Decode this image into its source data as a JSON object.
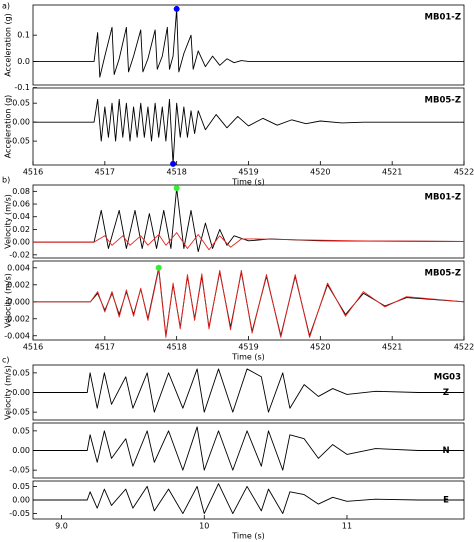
{
  "chart_data": [
    {
      "type": "line",
      "panel_label": "a)",
      "label": "MB01-Z",
      "ylabel": "Acceleration (g)",
      "xlim": [
        4516,
        4522
      ],
      "ylim": [
        -0.09,
        0.215
      ],
      "yticks": [
        0.1,
        {
          "value": 0,
          "label": "0.0"
        },
        -0.1
      ],
      "series": [
        {
          "color": "#000000",
          "x": [
            4516,
            4516.85,
            4516.9,
            4516.93,
            4517.0,
            4517.1,
            4517.13,
            4517.2,
            4517.3,
            4517.33,
            4517.4,
            4517.5,
            4517.53,
            4517.6,
            4517.7,
            4517.73,
            4517.8,
            4517.87,
            4517.9,
            4517.95,
            4518.0,
            4518.03,
            4518.1,
            4518.2,
            4518.23,
            4518.3,
            4518.4,
            4518.5,
            4518.6,
            4518.7,
            4518.8,
            4518.9,
            4519.0,
            4522
          ],
          "values": [
            0,
            0,
            0.11,
            -0.06,
            0.02,
            0.13,
            -0.05,
            0.01,
            0.13,
            -0.04,
            0.02,
            0.12,
            -0.04,
            0.01,
            0.12,
            -0.03,
            0.02,
            0.13,
            -0.03,
            0.02,
            0.2,
            -0.04,
            0.03,
            0.1,
            -0.03,
            0.04,
            -0.02,
            0.02,
            -0.015,
            0.01,
            -0.005,
            0.003,
            0,
            0
          ]
        }
      ],
      "points": [
        {
          "x": 4518.0,
          "y": 0.2,
          "color": "#0000ff"
        }
      ]
    },
    {
      "type": "line",
      "label": "MB05-Z",
      "ylabel": "Acceleration (g)",
      "xlabel": "Time (s)",
      "xlim": [
        4516,
        4522
      ],
      "xticks": [
        4516,
        4517,
        4518,
        4519,
        4520,
        4521,
        4522
      ],
      "ylim": [
        -0.113,
        0.09
      ],
      "yticks": [
        0.05,
        {
          "value": 0,
          "label": "0.00"
        },
        -0.05
      ],
      "series": [
        {
          "color": "#000000",
          "x": [
            4516,
            4516.85,
            4516.9,
            4516.95,
            4517.0,
            4517.05,
            4517.1,
            4517.15,
            4517.2,
            4517.25,
            4517.3,
            4517.35,
            4517.4,
            4517.45,
            4517.5,
            4517.55,
            4517.6,
            4517.65,
            4517.7,
            4517.75,
            4517.8,
            4517.85,
            4517.9,
            4517.95,
            4518.0,
            4518.05,
            4518.1,
            4518.15,
            4518.2,
            4518.25,
            4518.3,
            4518.4,
            4518.55,
            4518.7,
            4518.85,
            4519.0,
            4519.2,
            4519.4,
            4519.6,
            4519.8,
            4520.0,
            4520.3,
            4520.6,
            4522
          ],
          "values": [
            0,
            0,
            0.06,
            -0.05,
            0.04,
            -0.04,
            0.05,
            -0.05,
            0.06,
            -0.04,
            0.05,
            -0.05,
            0.04,
            -0.04,
            0.05,
            -0.04,
            0.04,
            -0.05,
            0.05,
            -0.04,
            0.04,
            -0.05,
            0.06,
            -0.11,
            0.05,
            -0.04,
            0.04,
            -0.04,
            0.03,
            -0.03,
            0.03,
            -0.02,
            0.02,
            -0.015,
            0.015,
            -0.01,
            0.01,
            -0.008,
            0.006,
            -0.004,
            0.003,
            -0.002,
            0,
            0
          ]
        }
      ],
      "points": [
        {
          "x": 4517.95,
          "y": -0.11,
          "color": "#0000ff"
        }
      ]
    },
    {
      "type": "line",
      "panel_label": "b)",
      "label": "MB01-Z",
      "ylabel": "Velocity (m/s)",
      "xlim": [
        4516,
        4522
      ],
      "ylim": [
        -0.025,
        0.09
      ],
      "yticks": [
        0.08,
        0.06,
        0.04,
        0.02,
        {
          "value": 0,
          "label": "0.00"
        },
        -0.02
      ],
      "series": [
        {
          "color": "#000000",
          "x": [
            4516,
            4516.85,
            4516.95,
            4517.05,
            4517.2,
            4517.3,
            4517.42,
            4517.52,
            4517.62,
            4517.72,
            4517.82,
            4517.92,
            4518.0,
            4518.1,
            4518.2,
            4518.3,
            4518.4,
            4518.5,
            4518.6,
            4518.7,
            4518.8,
            4519.0,
            4519.3,
            4520,
            4522
          ],
          "values": [
            0,
            0,
            0.05,
            -0.01,
            0.05,
            -0.01,
            0.05,
            -0.01,
            0.045,
            -0.01,
            0.05,
            -0.01,
            0.085,
            -0.01,
            0.05,
            -0.015,
            0.03,
            -0.01,
            0.02,
            -0.005,
            0.01,
            0.002,
            0.005,
            0.002,
            0.001
          ]
        },
        {
          "color": "#e8231e",
          "x": [
            4516,
            4516.85,
            4517.0,
            4517.1,
            4517.25,
            4517.35,
            4517.5,
            4517.6,
            4517.75,
            4517.85,
            4518.0,
            4518.15,
            4518.3,
            4518.45,
            4518.6,
            4518.75,
            4518.9,
            4519.1,
            4519.5,
            4520.5,
            4522
          ],
          "values": [
            0,
            0,
            0.01,
            -0.005,
            0.01,
            -0.005,
            0.01,
            -0.005,
            0.012,
            -0.005,
            0.015,
            -0.01,
            0.012,
            -0.012,
            0.01,
            -0.008,
            0.005,
            0.005,
            0.004,
            0.002,
            0.001
          ]
        }
      ],
      "points": [
        {
          "x": 4518.0,
          "y": 0.085,
          "color": "#33ee33"
        }
      ]
    },
    {
      "type": "line",
      "label": "MB05-Z",
      "ylabel": "Velocity (m/s)",
      "xlabel": "Time (s)",
      "xlim": [
        4516,
        4522
      ],
      "xticks": [
        4516,
        4517,
        4518,
        4519,
        4520,
        4521,
        4522
      ],
      "ylim": [
        -0.0045,
        0.0048
      ],
      "yticks": [
        0.004,
        0.002,
        {
          "value": 0,
          "label": "0.000"
        },
        -0.002,
        -0.004
      ],
      "series": [
        {
          "color": "#000000",
          "x": [
            4516,
            4516.8,
            4516.9,
            4517.0,
            4517.1,
            4517.2,
            4517.3,
            4517.4,
            4517.5,
            4517.6,
            4517.75,
            4517.85,
            4517.95,
            4518.05,
            4518.15,
            4518.25,
            4518.35,
            4518.45,
            4518.6,
            4518.75,
            4518.9,
            4519.05,
            4519.25,
            4519.45,
            4519.65,
            4519.85,
            4520.1,
            4520.35,
            4520.6,
            4520.9,
            4521.2,
            4522
          ],
          "values": [
            0,
            0,
            0.001,
            -0.001,
            0.001,
            -0.0015,
            0.0012,
            -0.0015,
            0.0015,
            -0.002,
            0.004,
            -0.004,
            0.002,
            -0.003,
            0.003,
            -0.002,
            0.003,
            -0.003,
            0.0035,
            -0.003,
            0.0035,
            -0.0035,
            0.003,
            -0.004,
            0.003,
            -0.004,
            0.002,
            -0.0015,
            0.001,
            -0.0005,
            0.0005,
            0
          ]
        },
        {
          "color": "#e8231e",
          "x": [
            4516,
            4516.8,
            4516.9,
            4517.0,
            4517.1,
            4517.2,
            4517.3,
            4517.4,
            4517.5,
            4517.6,
            4517.75,
            4517.85,
            4517.95,
            4518.05,
            4518.15,
            4518.25,
            4518.35,
            4518.45,
            4518.6,
            4518.75,
            4518.9,
            4519.05,
            4519.25,
            4519.45,
            4519.65,
            4519.85,
            4520.1,
            4520.35,
            4520.6,
            4520.9,
            4521.2,
            4522
          ],
          "values": [
            0,
            0,
            0.0012,
            -0.0012,
            0.0012,
            -0.0018,
            0.0014,
            -0.0017,
            0.0016,
            -0.0022,
            0.0038,
            -0.0042,
            0.0022,
            -0.0032,
            0.0032,
            -0.0022,
            0.0033,
            -0.0032,
            0.0037,
            -0.0033,
            0.0037,
            -0.0037,
            0.0032,
            -0.0042,
            0.0032,
            -0.0042,
            0.0022,
            -0.0017,
            0.0012,
            -0.0006,
            0.0006,
            0
          ]
        }
      ],
      "points": [
        {
          "x": 4517.75,
          "y": 0.004,
          "color": "#33ee33"
        }
      ]
    },
    {
      "type": "line",
      "panel_label": "c)",
      "label": "MG03",
      "component": "Z",
      "ylabel": "Velocity (m/s)",
      "xlim": [
        8.8,
        11.82
      ],
      "ylim": [
        -0.07,
        0.07
      ],
      "yticks": [
        0.05,
        {
          "value": 0,
          "label": "0.00"
        },
        -0.05
      ],
      "series": [
        {
          "color": "#000000",
          "x": [
            8.8,
            9.18,
            9.2,
            9.25,
            9.3,
            9.35,
            9.45,
            9.5,
            9.6,
            9.65,
            9.75,
            9.85,
            9.95,
            10.0,
            10.1,
            10.2,
            10.3,
            10.4,
            10.45,
            10.55,
            10.6,
            10.7,
            10.8,
            10.9,
            11.0,
            11.2,
            11.5,
            11.82
          ],
          "values": [
            0,
            0,
            0.05,
            -0.04,
            0.05,
            -0.03,
            0.04,
            -0.04,
            0.05,
            -0.05,
            0.05,
            -0.04,
            0.06,
            -0.05,
            0.06,
            -0.05,
            0.06,
            0.04,
            -0.05,
            0.05,
            -0.04,
            0.02,
            -0.01,
            0.01,
            -0.005,
            0.003,
            0,
            0
          ]
        }
      ]
    },
    {
      "type": "line",
      "component": "N",
      "xlim": [
        8.8,
        11.82
      ],
      "ylim": [
        -0.07,
        0.07
      ],
      "yticks": [
        0.05,
        {
          "value": 0,
          "label": "0.00"
        },
        -0.05
      ],
      "series": [
        {
          "color": "#000000",
          "x": [
            8.8,
            9.18,
            9.2,
            9.25,
            9.3,
            9.35,
            9.45,
            9.5,
            9.6,
            9.65,
            9.75,
            9.85,
            9.95,
            10.0,
            10.1,
            10.2,
            10.3,
            10.4,
            10.45,
            10.55,
            10.6,
            10.7,
            10.8,
            10.9,
            11.0,
            11.2,
            11.5,
            11.82
          ],
          "values": [
            0,
            0,
            0.04,
            -0.03,
            0.05,
            -0.02,
            0.03,
            -0.04,
            0.05,
            -0.03,
            0.05,
            -0.05,
            0.06,
            -0.05,
            0.05,
            -0.05,
            0.05,
            -0.04,
            0.05,
            -0.05,
            0.04,
            0.03,
            -0.02,
            0.015,
            -0.01,
            0.005,
            0,
            0
          ]
        }
      ]
    },
    {
      "type": "line",
      "component": "E",
      "xlabel": "Time (s)",
      "xlim": [
        8.8,
        11.82
      ],
      "xticks": [
        {
          "value": 9,
          "label": "9.0"
        },
        10,
        11
      ],
      "ylim": [
        -0.07,
        0.07
      ],
      "yticks": [
        0.05,
        {
          "value": 0,
          "label": "0.00"
        },
        -0.05
      ],
      "series": [
        {
          "color": "#000000",
          "x": [
            8.8,
            9.18,
            9.2,
            9.25,
            9.3,
            9.35,
            9.45,
            9.5,
            9.6,
            9.65,
            9.75,
            9.85,
            9.95,
            10.0,
            10.1,
            10.2,
            10.3,
            10.4,
            10.45,
            10.55,
            10.6,
            10.7,
            10.8,
            10.9,
            11.0,
            11.2,
            11.5,
            11.82
          ],
          "values": [
            0,
            0,
            0.03,
            -0.03,
            0.04,
            -0.02,
            0.04,
            -0.03,
            0.05,
            -0.04,
            0.04,
            -0.05,
            0.05,
            -0.05,
            0.06,
            -0.05,
            0.05,
            -0.04,
            0.04,
            -0.05,
            0.03,
            0.02,
            -0.015,
            0.01,
            -0.005,
            0.003,
            0,
            0
          ]
        }
      ]
    }
  ]
}
